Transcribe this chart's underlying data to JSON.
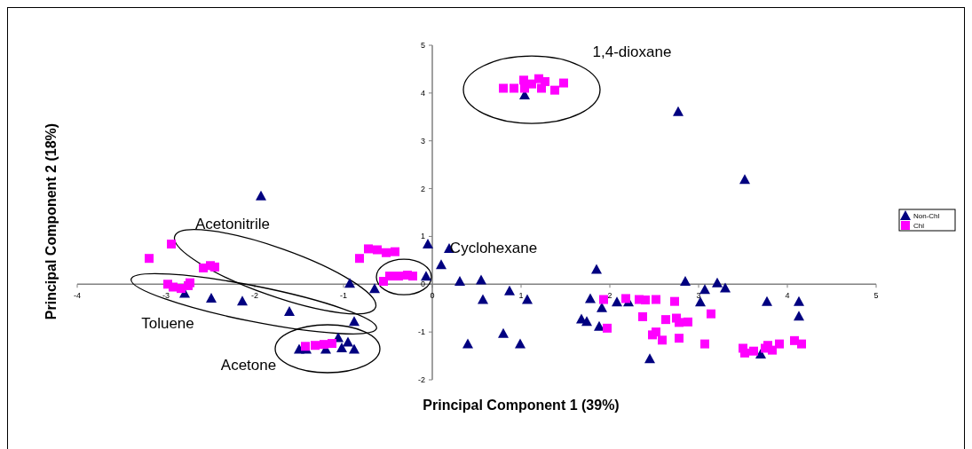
{
  "chart_data": {
    "type": "scatter",
    "xlabel": "Principal Component 1 (39%)",
    "ylabel": "Principal Component 2 (18%)",
    "xlim": [
      -4,
      5
    ],
    "xticks": [
      -4,
      -3,
      -2,
      -1,
      0,
      1,
      2,
      3,
      4,
      5
    ],
    "ylim": [
      -2,
      5
    ],
    "yticks": [
      -2,
      -1,
      0,
      1,
      2,
      3,
      4,
      5
    ],
    "grid": false,
    "legend": "right",
    "annotations": [
      "1,4-dioxane",
      "Acetonitrile",
      "Cyclohexane",
      "Toluene",
      "Acetone"
    ],
    "series": [
      {
        "name": "Non-Chl",
        "color": "#000080",
        "marker": "triangle",
        "x": [
          -1.93,
          -0.05,
          0.1,
          0.19,
          -0.07,
          -0.93,
          -0.65,
          -2.79,
          -2.49,
          -2.14,
          -1.61,
          -0.88,
          -1.5,
          -1.42,
          -1.2,
          -1.06,
          -1.02,
          -0.95,
          -0.88,
          1.04,
          2.77,
          3.52,
          0.31,
          0.55,
          0.57,
          0.87,
          1.07,
          0.4,
          0.8,
          0.99,
          1.85,
          1.78,
          1.68,
          1.74,
          1.88,
          1.91,
          2.08,
          2.21,
          2.45,
          2.85,
          3.02,
          3.07,
          3.21,
          3.3,
          3.77,
          3.7,
          4.13,
          4.13
        ],
        "values": [
          1.85,
          0.84,
          0.41,
          0.75,
          0.17,
          0.02,
          -0.09,
          -0.19,
          -0.29,
          -0.35,
          -0.57,
          -0.78,
          -1.36,
          -1.36,
          -1.36,
          -1.12,
          -1.33,
          -1.21,
          -1.36,
          3.96,
          3.61,
          2.19,
          0.06,
          0.09,
          -0.32,
          -0.14,
          -0.32,
          -1.25,
          -1.03,
          -1.25,
          0.31,
          -0.3,
          -0.73,
          -0.78,
          -0.88,
          -0.49,
          -0.37,
          -0.37,
          -1.56,
          0.06,
          -0.37,
          -0.11,
          0.03,
          -0.08,
          -0.36,
          -1.46,
          -0.36,
          -0.67
        ]
      },
      {
        "name": "Chl",
        "color": "#ff00ff",
        "marker": "square",
        "x": [
          0.8,
          0.92,
          1.03,
          1.04,
          1.12,
          1.2,
          1.23,
          1.27,
          1.38,
          1.48,
          -2.94,
          -3.19,
          -2.58,
          -2.5,
          -2.45,
          -2.98,
          -2.92,
          -2.83,
          -2.75,
          -2.73,
          -1.43,
          -1.32,
          -1.22,
          -1.13,
          -0.82,
          -0.72,
          -0.62,
          -0.52,
          -0.42,
          -0.55,
          -0.48,
          -0.38,
          -0.28,
          -0.22,
          1.93,
          1.97,
          2.18,
          2.33,
          2.4,
          2.52,
          2.73,
          2.37,
          2.63,
          2.75,
          2.78,
          2.88,
          3.14,
          2.48,
          2.52,
          2.59,
          2.78,
          3.07,
          3.5,
          3.52,
          3.62,
          3.75,
          3.78,
          3.83,
          3.91,
          4.08,
          4.16
        ],
        "values": [
          4.1,
          4.1,
          4.27,
          4.1,
          4.19,
          4.3,
          4.1,
          4.24,
          4.06,
          4.21,
          0.84,
          0.54,
          0.34,
          0.39,
          0.36,
          0,
          -0.06,
          -0.09,
          -0.03,
          0.03,
          -1.3,
          -1.28,
          -1.26,
          -1.24,
          0.54,
          0.74,
          0.72,
          0.66,
          0.68,
          0.06,
          0.17,
          0.17,
          0.19,
          0.17,
          -0.32,
          -0.92,
          -0.3,
          -0.32,
          -0.33,
          -0.32,
          -0.36,
          -0.68,
          -0.74,
          -0.71,
          -0.8,
          -0.79,
          -0.62,
          -1.06,
          -1,
          -1.17,
          -1.13,
          -1.25,
          -1.34,
          -1.44,
          -1.4,
          -1.34,
          -1.28,
          -1.38,
          -1.25,
          -1.18,
          -1.25
        ]
      }
    ]
  }
}
